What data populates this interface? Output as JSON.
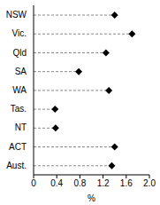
{
  "chart_data": {
    "type": "dot",
    "orientation": "horizontal",
    "categories": [
      "NSW",
      "Vic.",
      "Qld",
      "SA",
      "WA",
      "Tas.",
      "NT",
      "ACT",
      "Aust."
    ],
    "values": [
      1.4,
      1.7,
      1.25,
      0.78,
      1.3,
      0.37,
      0.38,
      1.4,
      1.35
    ],
    "x_label": "%",
    "xlim": [
      0,
      2
    ],
    "xticks": [
      0,
      0.4,
      0.8,
      1.2,
      1.6,
      {
        "value": 2,
        "label": "2.0"
      }
    ],
    "color": "#000000",
    "marker": "diamond",
    "line_style": "dashed",
    "grid": false
  }
}
